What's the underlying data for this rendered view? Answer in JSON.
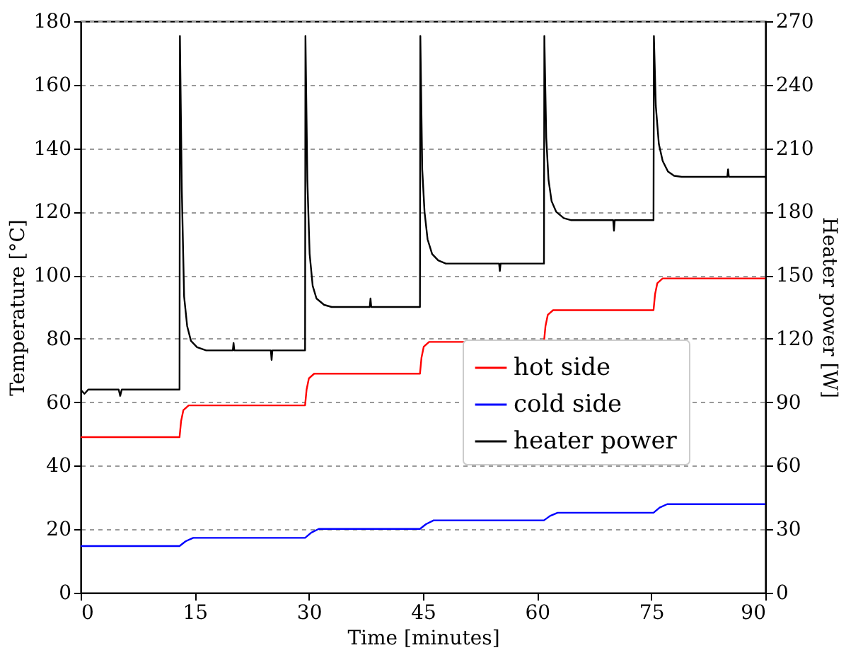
{
  "chart_data": {
    "type": "line",
    "xlabel": "Time [minutes]",
    "ylabel": "Temperature [°C]",
    "y2label": "Heater power [W]",
    "xlim": [
      0,
      90
    ],
    "xticks": [
      0,
      15,
      30,
      45,
      60,
      75,
      90
    ],
    "ylim": [
      0,
      180
    ],
    "yticks": [
      0,
      20,
      40,
      60,
      80,
      100,
      120,
      140,
      160,
      180
    ],
    "y2lim": [
      0,
      270
    ],
    "y2ticks": [
      0,
      30,
      60,
      90,
      120,
      150,
      180,
      210,
      240,
      270
    ],
    "grid": "y",
    "legend": "right",
    "line_style": "solid",
    "marker": "none",
    "series": [
      {
        "name": "hot side",
        "color": "#ff0000",
        "x": [
          0,
          13.0,
          13.2,
          13.5,
          14.2,
          29.5,
          29.7,
          30.0,
          30.7,
          44.6,
          44.8,
          45.1,
          45.8,
          60.9,
          61.1,
          61.4,
          62.1,
          75.3,
          75.5,
          75.8,
          76.5,
          90
        ],
        "values": [
          49,
          49,
          54,
          57.5,
          59,
          59,
          64,
          67.5,
          69,
          69,
          74,
          77.5,
          79,
          79,
          84,
          87.5,
          89,
          89,
          94,
          97.5,
          99,
          99
        ]
      },
      {
        "name": "cold side",
        "color": "#0000ff",
        "x": [
          0,
          13.0,
          13.8,
          14.8,
          29.5,
          30.3,
          31.3,
          44.6,
          45.4,
          46.4,
          60.9,
          61.7,
          62.7,
          75.3,
          76.1,
          77.1,
          90
        ],
        "values": [
          14.7,
          14.7,
          16.2,
          17.3,
          17.3,
          18.9,
          20.1,
          20.1,
          21.6,
          22.8,
          22.8,
          24.2,
          25.2,
          25.2,
          26.8,
          27.9,
          27.9
        ]
      },
      {
        "name": "heater power",
        "color": "#000000",
        "axis": "y2",
        "x": [
          0,
          0.5,
          1,
          5,
          5.2,
          5.4,
          13.0,
          13.05,
          13.3,
          13.6,
          14.0,
          14.5,
          15.3,
          16.5,
          20,
          20.1,
          20.2,
          25,
          25.1,
          25.2,
          29.5,
          29.55,
          29.8,
          30.1,
          30.5,
          31,
          32,
          33,
          38,
          38.1,
          38.2,
          44.6,
          44.65,
          44.9,
          45.2,
          45.6,
          46.2,
          47,
          48,
          55,
          55.1,
          55.2,
          60.9,
          60.95,
          61.2,
          61.5,
          61.9,
          62.5,
          63.5,
          64.5,
          70,
          70.1,
          70.2,
          75.3,
          75.35,
          75.6,
          76,
          76.5,
          77.2,
          78,
          79,
          85,
          85.1,
          85.2,
          90
        ],
        "values": [
          96,
          94,
          96,
          96,
          93,
          96,
          96,
          263,
          190,
          140,
          126,
          119,
          116,
          114.5,
          114.5,
          118,
          114.5,
          114.5,
          110,
          114.5,
          114.5,
          263,
          195,
          160,
          145,
          139,
          136,
          135,
          135,
          139,
          135,
          135,
          263,
          200,
          180,
          167,
          160,
          157,
          155.5,
          155.5,
          152,
          155.5,
          155.5,
          263,
          215,
          195,
          185,
          180,
          177,
          176,
          176,
          171,
          176,
          176,
          263,
          230,
          212,
          204,
          199,
          197,
          196.5,
          196.5,
          200,
          196.5,
          196.5
        ]
      }
    ]
  }
}
